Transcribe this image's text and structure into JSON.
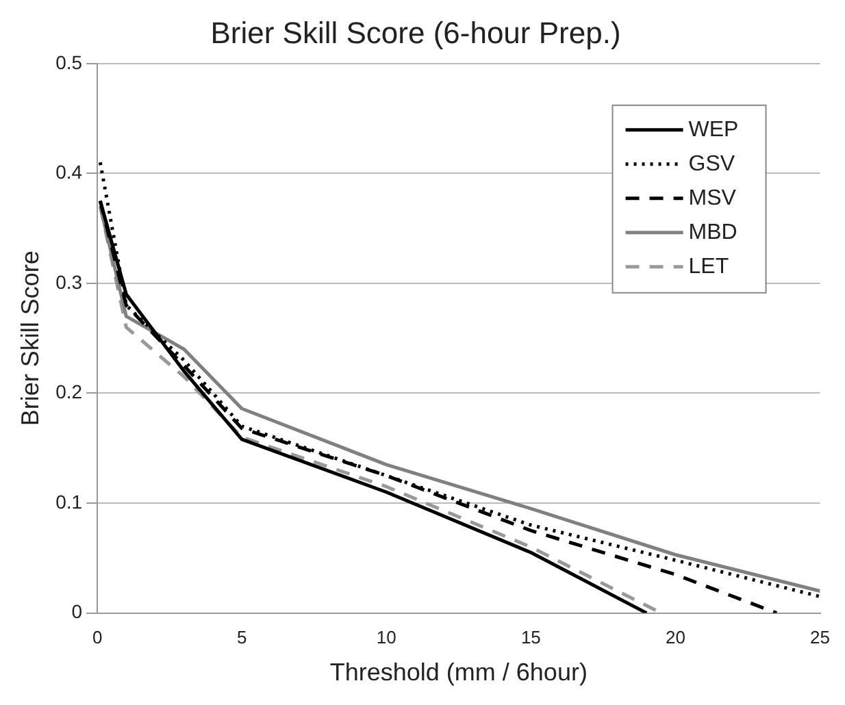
{
  "chart_data": {
    "type": "line",
    "title": "Brier Skill Score (6-hour Prep.)",
    "xlabel": "Threshold (mm / 6hour)",
    "ylabel": "Brier Skill Score",
    "xlim": [
      0,
      25
    ],
    "xticks": [
      0,
      5,
      10,
      15,
      20,
      25
    ],
    "ylim": [
      0,
      0.5
    ],
    "yticks": [
      0,
      0.1,
      0.2,
      0.3,
      0.4,
      0.5
    ],
    "grid": "y",
    "legend": "top right",
    "marker": "none",
    "series": [
      {
        "name": "WEP",
        "color": "#000000",
        "line_style": "solid",
        "x": [
          0.1,
          1,
          3,
          5,
          10,
          15,
          19
        ],
        "values": [
          0.375,
          0.29,
          0.22,
          0.158,
          0.11,
          0.055,
          0
        ]
      },
      {
        "name": "GSV",
        "color": "#000000",
        "line_style": "dotted",
        "x": [
          0.1,
          1,
          3,
          5,
          10,
          15,
          20,
          25
        ],
        "values": [
          0.41,
          0.28,
          0.23,
          0.17,
          0.125,
          0.08,
          0.048,
          0.015
        ]
      },
      {
        "name": "MSV",
        "color": "#000000",
        "line_style": "dashed",
        "x": [
          0.1,
          1,
          3,
          5,
          10,
          15,
          20,
          23.5
        ],
        "values": [
          0.375,
          0.28,
          0.225,
          0.168,
          0.125,
          0.075,
          0.035,
          0
        ]
      },
      {
        "name": "MBD",
        "color": "#808080",
        "line_style": "solid",
        "x": [
          0.1,
          1,
          3,
          5,
          10,
          15,
          20,
          25
        ],
        "values": [
          0.37,
          0.27,
          0.24,
          0.186,
          0.135,
          0.095,
          0.053,
          0.02
        ]
      },
      {
        "name": "LET",
        "color": "#999999",
        "line_style": "dashed",
        "x": [
          0.1,
          1,
          3,
          5,
          10,
          15,
          19.5
        ],
        "values": [
          0.37,
          0.26,
          0.215,
          0.16,
          0.115,
          0.06,
          0
        ]
      }
    ]
  }
}
